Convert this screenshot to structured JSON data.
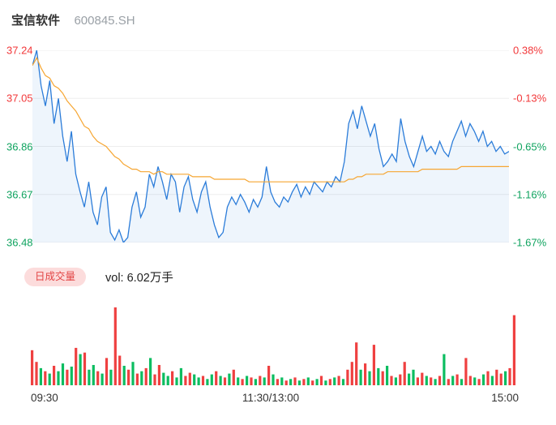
{
  "header": {
    "stock_name": "宝信软件",
    "stock_code": "600845.SH"
  },
  "colors": {
    "up_text": "#f2383a",
    "down_text": "#0fa35f",
    "price_line": "#2b7cd9",
    "avg_line": "#f6a632",
    "volume_up": "#ef4040",
    "volume_down": "#0cbd60",
    "badge_bg": "#fcdcdc",
    "badge_text": "#e24444",
    "grid": "#ededed"
  },
  "volume_panel": {
    "badge_label": "日成交量",
    "vol_label": "vol: 6.02万手"
  },
  "chart_data": [
    {
      "type": "line",
      "x_ticks": [
        "09:30",
        "11:30/13:00",
        "15:00"
      ],
      "y_ticks_left": [
        "37.24",
        "37.05",
        "36.86",
        "36.67",
        "36.48"
      ],
      "y_ticks_right": [
        "0.38%",
        "-0.13%",
        "-0.65%",
        "-1.16%",
        "-1.67%"
      ],
      "ylim": [
        36.48,
        37.24
      ],
      "grid": true,
      "legend_position": "none",
      "series": [
        {
          "name": "price",
          "color": "#2b7cd9",
          "values": [
            37.18,
            37.24,
            37.1,
            37.02,
            37.12,
            36.95,
            37.05,
            36.9,
            36.8,
            36.92,
            36.75,
            36.68,
            36.62,
            36.72,
            36.6,
            36.55,
            36.66,
            36.7,
            36.52,
            36.49,
            36.53,
            36.48,
            36.5,
            36.62,
            36.68,
            36.58,
            36.62,
            36.75,
            36.7,
            36.78,
            36.72,
            36.65,
            36.75,
            36.72,
            36.6,
            36.7,
            36.74,
            36.65,
            36.6,
            36.68,
            36.72,
            36.62,
            36.55,
            36.5,
            36.52,
            36.62,
            36.66,
            36.63,
            36.67,
            36.64,
            36.6,
            36.65,
            36.62,
            36.66,
            36.78,
            36.68,
            36.64,
            36.62,
            36.66,
            36.64,
            36.68,
            36.71,
            36.66,
            36.7,
            36.67,
            36.72,
            36.7,
            36.68,
            36.72,
            36.7,
            36.74,
            36.72,
            36.8,
            36.95,
            37.0,
            36.93,
            37.02,
            36.96,
            36.9,
            36.95,
            36.85,
            36.78,
            36.8,
            36.83,
            36.8,
            36.97,
            36.88,
            36.82,
            36.78,
            36.84,
            36.9,
            36.84,
            36.86,
            36.83,
            36.88,
            36.84,
            36.82,
            36.88,
            36.92,
            36.96,
            36.9,
            36.95,
            36.92,
            36.88,
            36.92,
            36.86,
            36.88,
            36.84,
            36.86,
            36.83,
            36.84
          ]
        },
        {
          "name": "avg_price",
          "color": "#f6a632",
          "values": [
            37.18,
            37.21,
            37.17,
            37.14,
            37.13,
            37.1,
            37.09,
            37.07,
            37.04,
            37.02,
            37.0,
            36.97,
            36.94,
            36.93,
            36.9,
            36.88,
            36.87,
            36.86,
            36.84,
            36.82,
            36.81,
            36.79,
            36.78,
            36.77,
            36.77,
            36.76,
            36.76,
            36.76,
            36.75,
            36.76,
            36.76,
            36.75,
            36.75,
            36.75,
            36.75,
            36.75,
            36.75,
            36.74,
            36.74,
            36.74,
            36.74,
            36.74,
            36.73,
            36.73,
            36.73,
            36.73,
            36.73,
            36.73,
            36.73,
            36.73,
            36.72,
            36.72,
            36.72,
            36.72,
            36.72,
            36.72,
            36.72,
            36.72,
            36.72,
            36.72,
            36.72,
            36.72,
            36.72,
            36.72,
            36.72,
            36.72,
            36.72,
            36.72,
            36.72,
            36.72,
            36.72,
            36.72,
            36.72,
            36.73,
            36.73,
            36.74,
            36.74,
            36.75,
            36.75,
            36.75,
            36.75,
            36.75,
            36.76,
            36.76,
            36.76,
            36.76,
            36.76,
            36.76,
            36.76,
            36.76,
            36.77,
            36.77,
            36.77,
            36.77,
            36.77,
            36.77,
            36.77,
            36.77,
            36.77,
            36.78,
            36.78,
            36.78,
            36.78,
            36.78,
            36.78,
            36.78,
            36.78,
            36.78,
            36.78,
            36.78,
            36.78
          ]
        }
      ]
    },
    {
      "type": "bar",
      "name": "volume",
      "up_color": "#ef4040",
      "down_color": "#0cbd60",
      "values": [
        45,
        30,
        -22,
        18,
        -15,
        25,
        -18,
        -28,
        20,
        -24,
        48,
        -40,
        42,
        -20,
        -26,
        18,
        -15,
        35,
        -20,
        100,
        38,
        -25,
        20,
        -30,
        15,
        -18,
        22,
        -35,
        14,
        26,
        -16,
        -12,
        18,
        -10,
        -22,
        12,
        16,
        -14,
        -10,
        12,
        -8,
        -14,
        18,
        -12,
        10,
        -15,
        20,
        -10,
        8,
        -12,
        10,
        -8,
        12,
        -10,
        25,
        -14,
        8,
        -10,
        6,
        -8,
        10,
        -6,
        8,
        -10,
        6,
        -8,
        12,
        -6,
        8,
        -10,
        12,
        -8,
        20,
        30,
        55,
        -20,
        28,
        -18,
        52,
        -22,
        18,
        -25,
        12,
        -10,
        14,
        30,
        -15,
        -20,
        10,
        16,
        -12,
        10,
        -8,
        12,
        -40,
        8,
        -12,
        14,
        -8,
        35,
        12,
        -10,
        8,
        -14,
        18,
        -12,
        20,
        15,
        -18,
        22,
        90
      ]
    }
  ]
}
